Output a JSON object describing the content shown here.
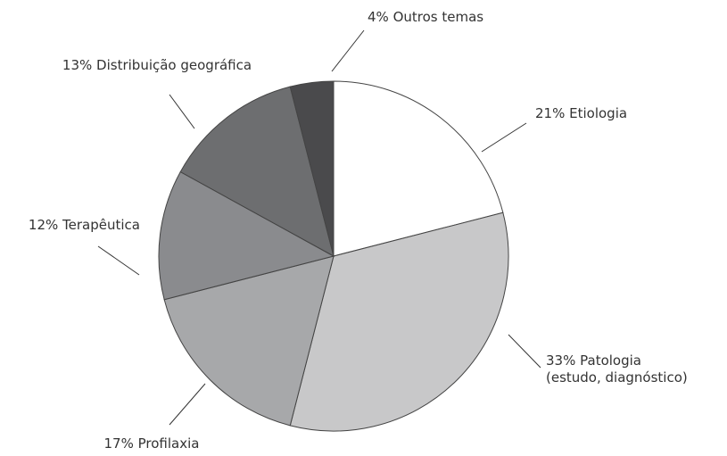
{
  "chart_data": {
    "type": "pie",
    "categories": [
      "Etiologia",
      "Patologia\n(estudo, diagnóstico)",
      "Profilaxia",
      "Terapêutica",
      "Distribuição geográfica",
      "Outros temas"
    ],
    "values": [
      21,
      33,
      17,
      12,
      13,
      4
    ],
    "value_labels": [
      "21%",
      "33%",
      "17%",
      "12%",
      "13%",
      "4%"
    ],
    "colors": [
      "#ffffff",
      "#c8c8c9",
      "#a7a8aa",
      "#8a8b8e",
      "#6d6e70",
      "#4a4a4c"
    ]
  }
}
